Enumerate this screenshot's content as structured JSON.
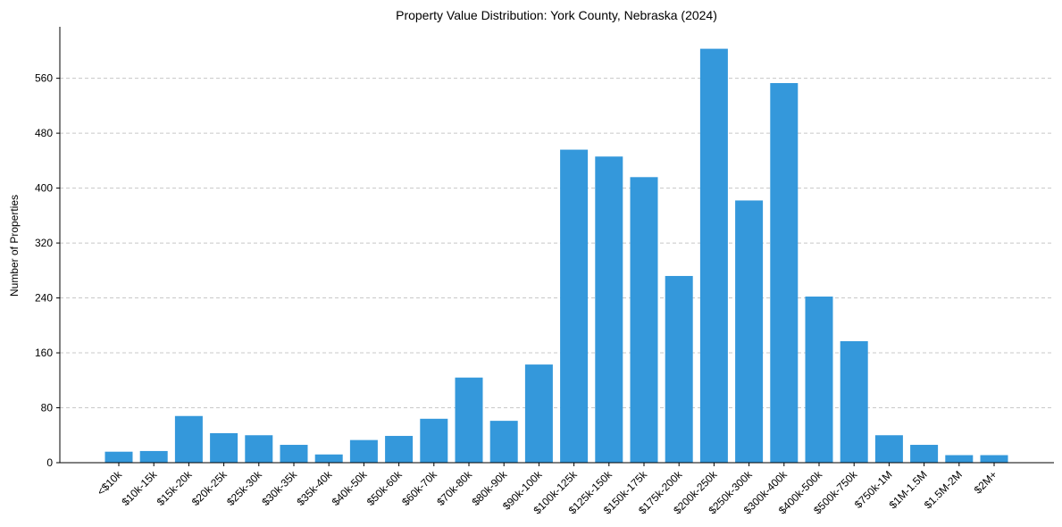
{
  "chart_data": {
    "type": "bar",
    "title": "Property Value Distribution: York County, Nebraska (2024)",
    "xlabel": "",
    "ylabel": "Number of Properties",
    "categories": [
      "<$10k",
      "$10k-15k",
      "$15k-20k",
      "$20k-25k",
      "$25k-30k",
      "$30k-35k",
      "$35k-40k",
      "$40k-50k",
      "$50k-60k",
      "$60k-70k",
      "$70k-80k",
      "$80k-90k",
      "$90k-100k",
      "$100k-125k",
      "$125k-150k",
      "$150k-175k",
      "$175k-200k",
      "$200k-250k",
      "$250k-300k",
      "$300k-400k",
      "$400k-500k",
      "$500k-750k",
      "$750k-1M",
      "$1M-1.5M",
      "$1.5M-2M",
      "$2M+"
    ],
    "values": [
      16,
      17,
      68,
      43,
      40,
      26,
      12,
      33,
      39,
      64,
      124,
      61,
      143,
      456,
      446,
      416,
      272,
      603,
      382,
      553,
      242,
      177,
      40,
      26,
      11,
      11
    ],
    "ylim": [
      0,
      635
    ],
    "yticks": [
      0,
      80,
      160,
      240,
      320,
      400,
      480,
      560
    ],
    "grid": "y-dashed",
    "bar_color": "#3498db"
  }
}
